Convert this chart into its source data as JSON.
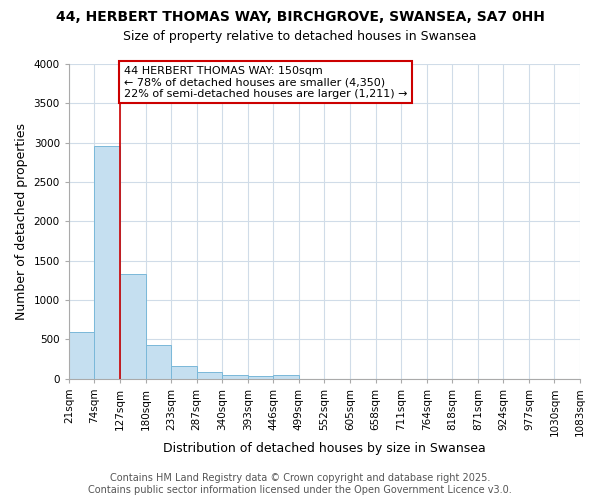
{
  "title_line1": "44, HERBERT THOMAS WAY, BIRCHGROVE, SWANSEA, SA7 0HH",
  "title_line2": "Size of property relative to detached houses in Swansea",
  "bar_values": [
    590,
    2960,
    1330,
    430,
    160,
    90,
    50,
    30,
    50,
    0,
    0,
    0,
    0,
    0,
    0,
    0,
    0,
    0,
    0,
    0
  ],
  "categories": [
    "21sqm",
    "74sqm",
    "127sqm",
    "180sqm",
    "233sqm",
    "287sqm",
    "340sqm",
    "393sqm",
    "446sqm",
    "499sqm",
    "552sqm",
    "605sqm",
    "658sqm",
    "711sqm",
    "764sqm",
    "818sqm",
    "871sqm",
    "924sqm",
    "977sqm",
    "1030sqm",
    "1083sqm"
  ],
  "xlabel": "Distribution of detached houses by size in Swansea",
  "ylabel": "Number of detached properties",
  "ylim": [
    0,
    4000
  ],
  "yticks": [
    0,
    500,
    1000,
    1500,
    2000,
    2500,
    3000,
    3500,
    4000
  ],
  "bar_color": "#c5dff0",
  "bar_edge_color": "#7ab8d9",
  "vline_x": 2,
  "vline_color": "#cc0000",
  "annotation_text": "44 HERBERT THOMAS WAY: 150sqm\n← 78% of detached houses are smaller (4,350)\n22% of semi-detached houses are larger (1,211) →",
  "annotation_box_color": "#ffffff",
  "annotation_border_color": "#cc0000",
  "bg_color": "#ffffff",
  "plot_bg_color": "#ffffff",
  "grid_color": "#d0dce8",
  "footer_text": "Contains HM Land Registry data © Crown copyright and database right 2025.\nContains public sector information licensed under the Open Government Licence v3.0.",
  "title_fontsize": 10,
  "subtitle_fontsize": 9,
  "axis_label_fontsize": 9,
  "tick_fontsize": 7.5,
  "footer_fontsize": 7,
  "annotation_fontsize": 8
}
